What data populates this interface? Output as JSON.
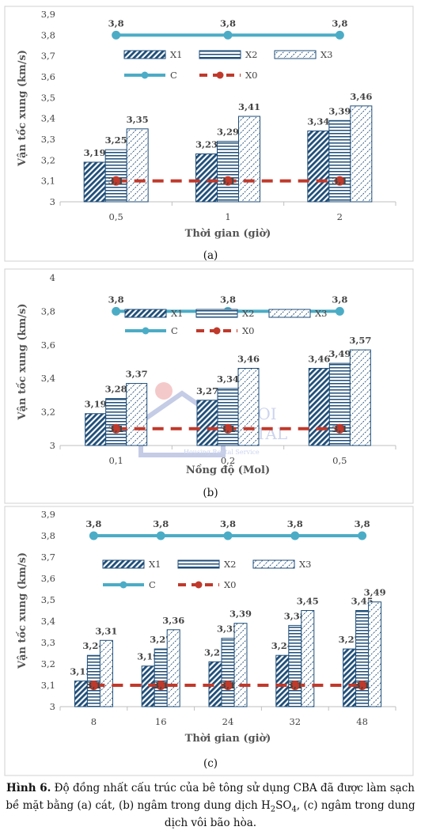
{
  "chart_data": [
    {
      "type": "bar",
      "panel_label": "(a)",
      "categories": [
        "0,5",
        "1",
        "2"
      ],
      "series": [
        {
          "name": "X1",
          "values": [
            3.19,
            3.23,
            3.34
          ],
          "labels": [
            "3,19",
            "3,23",
            "3,34"
          ]
        },
        {
          "name": "X2",
          "values": [
            3.25,
            3.29,
            3.39
          ],
          "labels": [
            "3,25",
            "3,29",
            "3,39"
          ]
        },
        {
          "name": "X3",
          "values": [
            3.35,
            3.41,
            3.46
          ],
          "labels": [
            "3,35",
            "3,41",
            "3,46"
          ]
        }
      ],
      "lines": [
        {
          "name": "C",
          "values": [
            3.8,
            3.8,
            3.8
          ],
          "labels": [
            "3,8",
            "3,8",
            "3,8"
          ],
          "color": "#4bacc6",
          "style": "solid"
        },
        {
          "name": "X0",
          "values": [
            3.1,
            3.1,
            3.1
          ],
          "labels": [
            "3,1",
            "3,1",
            "3,1"
          ],
          "color": "#c0392b",
          "style": "dashed"
        }
      ],
      "xlabel": "Thời gian (giờ)",
      "ylabel": "Vận tốc xung (km/s)",
      "ylim": [
        3,
        3.9
      ],
      "yticks": [
        3,
        3.1,
        3.2,
        3.3,
        3.4,
        3.5,
        3.6,
        3.7,
        3.8,
        3.9
      ],
      "ytick_labels": [
        "3",
        "3,1",
        "3,2",
        "3,3",
        "3,4",
        "3,5",
        "3,6",
        "3,7",
        "3,8",
        "3,9"
      ],
      "legend": "upper inside",
      "grid": false
    },
    {
      "type": "bar",
      "panel_label": "(b)",
      "categories": [
        "0,1",
        "0,2",
        "0,5"
      ],
      "series": [
        {
          "name": "X1",
          "values": [
            3.19,
            3.27,
            3.46
          ],
          "labels": [
            "3,19",
            "3,27",
            "3,46"
          ]
        },
        {
          "name": "X2",
          "values": [
            3.28,
            3.34,
            3.49
          ],
          "labels": [
            "3,28",
            "3,34",
            "3,49"
          ]
        },
        {
          "name": "X3",
          "values": [
            3.37,
            3.46,
            3.57
          ],
          "labels": [
            "3,37",
            "3,46",
            "3,57"
          ]
        }
      ],
      "lines": [
        {
          "name": "C",
          "values": [
            3.8,
            3.8,
            3.8
          ],
          "labels": [
            "3,8",
            "3,8",
            "3,8"
          ],
          "color": "#4bacc6",
          "style": "solid"
        },
        {
          "name": "X0",
          "values": [
            3.1,
            3.1,
            3.1
          ],
          "labels": [
            "3,1",
            "3,1",
            "3,1"
          ],
          "color": "#c0392b",
          "style": "dashed"
        }
      ],
      "xlabel": "Nồng độ (Mol)",
      "ylabel": "Vận tốc xung (km/s)",
      "ylim": [
        3,
        4
      ],
      "yticks": [
        3,
        3.2,
        3.4,
        3.6,
        3.8,
        4
      ],
      "ytick_labels": [
        "3",
        "3,2",
        "3,4",
        "3,6",
        "3,8",
        "4"
      ],
      "legend": "upper inside",
      "grid": false
    },
    {
      "type": "bar",
      "panel_label": "(c)",
      "categories": [
        "8",
        "16",
        "24",
        "32",
        "48"
      ],
      "series": [
        {
          "name": "X1",
          "values": [
            3.12,
            3.19,
            3.21,
            3.24,
            3.27
          ],
          "labels": [
            "3,12",
            "3,19",
            "3,21",
            "3,24",
            "3,27"
          ]
        },
        {
          "name": "X2",
          "values": [
            3.24,
            3.27,
            3.32,
            3.38,
            3.45
          ],
          "labels": [
            "3,24",
            "3,27",
            "3,32",
            "3,38",
            "3,45"
          ]
        },
        {
          "name": "X3",
          "values": [
            3.31,
            3.36,
            3.39,
            3.45,
            3.49
          ],
          "labels": [
            "3,31",
            "3,36",
            "3,39",
            "3,45",
            "3,49"
          ]
        }
      ],
      "lines": [
        {
          "name": "C",
          "values": [
            3.8,
            3.8,
            3.8,
            3.8,
            3.8
          ],
          "labels": [
            "3,8",
            "3,8",
            "3,8",
            "3,8",
            "3,8"
          ],
          "color": "#4bacc6",
          "style": "solid"
        },
        {
          "name": "X0",
          "values": [
            3.1,
            3.1,
            3.1,
            3.1,
            3.1
          ],
          "labels": [
            "3,1",
            "3,1",
            "3,1",
            "3,1",
            "3,1"
          ],
          "color": "#c0392b",
          "style": "dashed"
        }
      ],
      "xlabel": "Thời gian (giờ)",
      "ylabel": "Vận tốc xung (km/s)",
      "ylim": [
        3,
        3.9
      ],
      "yticks": [
        3,
        3.1,
        3.2,
        3.3,
        3.4,
        3.5,
        3.6,
        3.7,
        3.8,
        3.9
      ],
      "ytick_labels": [
        "3",
        "3,1",
        "3,2",
        "3,3",
        "3,4",
        "3,5",
        "3,6",
        "3,7",
        "3,8",
        "3,9"
      ],
      "legend": "upper inside",
      "grid": false
    }
  ],
  "watermark": {
    "line1": "HANOI",
    "line2": "RENTAL",
    "tagline": "Housing Rental Service"
  },
  "caption": {
    "label": "Hình 6.",
    "part1": " Độ đồng nhất cấu trúc của bê tông sử dụng CBA đã được làm sạch bề mặt bằng (a) cát, (b) ngâm trong dung dịch H",
    "sub2": "2",
    "part2": "SO",
    "sub4": "4",
    "part3": ", (c) ngâm trong dung dịch vôi bão hòa."
  }
}
